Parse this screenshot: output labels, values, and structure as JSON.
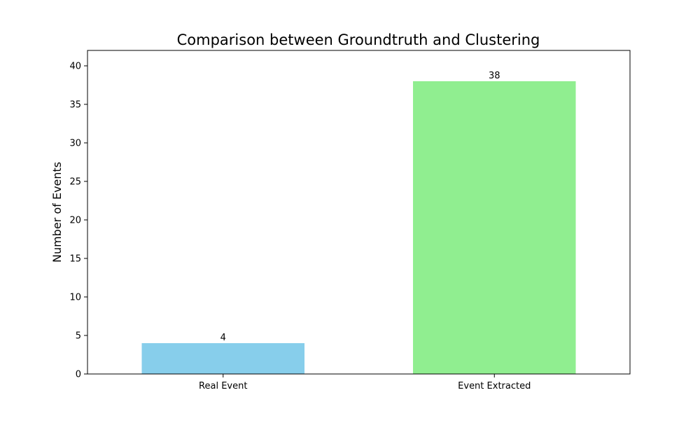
{
  "chart_data": {
    "type": "bar",
    "title": "Comparison between Groundtruth and Clustering",
    "xlabel": "",
    "ylabel": "Number of Events",
    "categories": [
      "Real Event",
      "Event Extracted"
    ],
    "values": [
      4,
      38
    ],
    "value_labels": [
      "4",
      "38"
    ],
    "colors": [
      "#87ceeb",
      "#90ee90"
    ],
    "ylim": [
      0,
      42
    ],
    "yticks": [
      0,
      5,
      10,
      15,
      20,
      25,
      30,
      35,
      40
    ],
    "ytick_labels": [
      "0",
      "5",
      "10",
      "15",
      "20",
      "25",
      "30",
      "35",
      "40"
    ],
    "grid": false,
    "legend": "none"
  }
}
